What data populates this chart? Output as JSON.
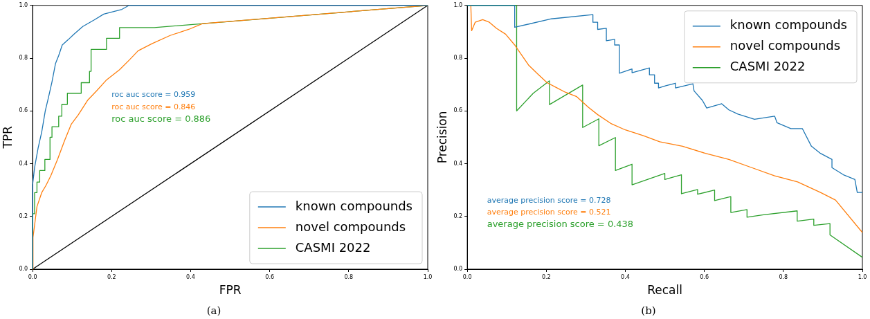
{
  "chart_data": [
    {
      "type": "line",
      "title": "(a)",
      "xlabel": "FPR",
      "ylabel": "TPR",
      "xlim": [
        0,
        1
      ],
      "ylim": [
        0,
        1
      ],
      "xticks": [
        {
          "value": 0,
          "label": "0.0"
        },
        {
          "value": 0.2,
          "label": "0.2"
        },
        {
          "value": 0.4,
          "label": "0.4"
        },
        {
          "value": 0.6,
          "label": "0.6"
        },
        {
          "value": 0.8,
          "label": "0.8"
        },
        {
          "value": 1,
          "label": "1.0"
        }
      ],
      "yticks": [
        {
          "value": 0,
          "label": "0.0"
        },
        {
          "value": 0.2,
          "label": "0.2"
        },
        {
          "value": 0.4,
          "label": "0.4"
        },
        {
          "value": 0.6,
          "label": "0.6"
        },
        {
          "value": 0.8,
          "label": "0.8"
        },
        {
          "value": 1,
          "label": "1.0"
        }
      ],
      "legend": "bottom right",
      "grid": false,
      "annotations": [
        "roc auc score = 0.959",
        "roc auc score = 0.846",
        "roc auc score = 0.886"
      ],
      "series": [
        {
          "name": "known compounds",
          "color": "#1f77b4",
          "x": [
            0,
            0,
            0.005,
            0.014,
            0.023,
            0.032,
            0.04,
            0.049,
            0.058,
            0.066,
            0.075,
            0.09,
            0.104,
            0.127,
            0.156,
            0.18,
            0.226,
            0.244,
            1
          ],
          "values": [
            0,
            0.32,
            0.385,
            0.46,
            0.52,
            0.6,
            0.65,
            0.71,
            0.78,
            0.81,
            0.85,
            0.87,
            0.89,
            0.92,
            0.945,
            0.967,
            0.985,
            1,
            1
          ]
        },
        {
          "name": "novel compounds",
          "color": "#ff7f0e",
          "x": [
            0,
            0.001,
            0.011,
            0.023,
            0.034,
            0.046,
            0.063,
            0.081,
            0.098,
            0.116,
            0.139,
            0.162,
            0.186,
            0.22,
            0.244,
            0.267,
            0.302,
            0.348,
            0.395,
            0.43,
            1
          ],
          "values": [
            0,
            0.12,
            0.237,
            0.29,
            0.318,
            0.354,
            0.416,
            0.488,
            0.55,
            0.586,
            0.64,
            0.676,
            0.716,
            0.756,
            0.792,
            0.828,
            0.855,
            0.886,
            0.909,
            0.931,
            1
          ]
        },
        {
          "name": "CASMI 2022",
          "color": "#2ca02c",
          "x": [
            0,
            0,
            0.005,
            0.005,
            0.011,
            0.011,
            0.018,
            0.018,
            0.031,
            0.031,
            0.044,
            0.044,
            0.049,
            0.049,
            0.066,
            0.066,
            0.074,
            0.074,
            0.088,
            0.088,
            0.123,
            0.123,
            0.144,
            0.144,
            0.148,
            0.148,
            0.187,
            0.187,
            0.22,
            0.22,
            0.308,
            1
          ],
          "values": [
            0,
            0.21,
            0.21,
            0.29,
            0.29,
            0.33,
            0.33,
            0.374,
            0.374,
            0.416,
            0.416,
            0.5,
            0.5,
            0.54,
            0.54,
            0.58,
            0.58,
            0.625,
            0.625,
            0.667,
            0.667,
            0.707,
            0.707,
            0.75,
            0.75,
            0.833,
            0.833,
            0.875,
            0.875,
            0.916,
            0.916,
            1
          ]
        },
        {
          "color": "#000000",
          "x": [
            0,
            1
          ],
          "values": [
            0,
            1
          ]
        }
      ]
    },
    {
      "type": "line",
      "title": "(b)",
      "xlabel": "Recall",
      "ylabel": "Precision",
      "xlim": [
        0,
        1
      ],
      "ylim": [
        0,
        1
      ],
      "xticks": [
        {
          "value": 0,
          "label": "0.0"
        },
        {
          "value": 0.2,
          "label": "0.2"
        },
        {
          "value": 0.4,
          "label": "0.4"
        },
        {
          "value": 0.6,
          "label": "0.6"
        },
        {
          "value": 0.8,
          "label": "0.8"
        },
        {
          "value": 1,
          "label": "1.0"
        }
      ],
      "yticks": [
        {
          "value": 0,
          "label": "0.0"
        },
        {
          "value": 0.2,
          "label": "0.2"
        },
        {
          "value": 0.4,
          "label": "0.4"
        },
        {
          "value": 0.6,
          "label": "0.6"
        },
        {
          "value": 0.8,
          "label": "0.8"
        },
        {
          "value": 1,
          "label": "1.0"
        }
      ],
      "legend": "top right",
      "grid": false,
      "annotations": [
        "average precision score = 0.728",
        "average precision score = 0.521",
        "average precision score = 0.438"
      ],
      "series": [
        {
          "name": "known compounds",
          "color": "#1f77b4",
          "x": [
            0,
            0.12,
            0.12,
            0.213,
            0.318,
            0.318,
            0.33,
            0.33,
            0.352,
            0.352,
            0.373,
            0.373,
            0.385,
            0.385,
            0.417,
            0.417,
            0.461,
            0.461,
            0.474,
            0.474,
            0.484,
            0.484,
            0.504,
            0.527,
            0.527,
            0.571,
            0.574,
            0.595,
            0.606,
            0.644,
            0.662,
            0.685,
            0.727,
            0.778,
            0.784,
            0.819,
            0.848,
            0.871,
            0.894,
            0.923,
            0.923,
            0.952,
            0.981,
            0.987,
            1
          ],
          "values": [
            1,
            1,
            0.917,
            0.949,
            0.965,
            0.936,
            0.936,
            0.909,
            0.913,
            0.866,
            0.871,
            0.85,
            0.85,
            0.743,
            0.759,
            0.745,
            0.763,
            0.737,
            0.737,
            0.705,
            0.705,
            0.687,
            0.696,
            0.705,
            0.687,
            0.703,
            0.676,
            0.64,
            0.611,
            0.627,
            0.604,
            0.588,
            0.568,
            0.58,
            0.555,
            0.533,
            0.533,
            0.466,
            0.439,
            0.416,
            0.385,
            0.358,
            0.34,
            0.291,
            0.291
          ]
        },
        {
          "name": "novel compounds",
          "color": "#ff7f0e",
          "x": [
            0.009,
            0.011,
            0.02,
            0.039,
            0.056,
            0.074,
            0.097,
            0.12,
            0.132,
            0.155,
            0.179,
            0.202,
            0.225,
            0.248,
            0.277,
            0.307,
            0.33,
            0.365,
            0.4,
            0.446,
            0.487,
            0.545,
            0.603,
            0.662,
            0.72,
            0.778,
            0.836,
            0.894,
            0.932,
            1
          ],
          "values": [
            1,
            0.904,
            0.936,
            0.946,
            0.936,
            0.913,
            0.891,
            0.85,
            0.824,
            0.774,
            0.739,
            0.707,
            0.689,
            0.671,
            0.654,
            0.613,
            0.586,
            0.551,
            0.528,
            0.506,
            0.483,
            0.466,
            0.439,
            0.416,
            0.385,
            0.354,
            0.331,
            0.291,
            0.262,
            0.139
          ]
        },
        {
          "name": "CASMI 2022",
          "color": "#2ca02c",
          "x": [
            0,
            0.125,
            0.125,
            0.167,
            0.208,
            0.208,
            0.292,
            0.292,
            0.333,
            0.333,
            0.375,
            0.375,
            0.417,
            0.417,
            0.5,
            0.5,
            0.542,
            0.542,
            0.583,
            0.583,
            0.626,
            0.626,
            0.667,
            0.667,
            0.708,
            0.708,
            0.75,
            0.835,
            0.835,
            0.877,
            0.877,
            0.918,
            0.918,
            1
          ],
          "values": [
            1,
            1,
            0.6,
            0.667,
            0.714,
            0.624,
            0.698,
            0.537,
            0.57,
            0.468,
            0.499,
            0.374,
            0.398,
            0.32,
            0.363,
            0.34,
            0.358,
            0.286,
            0.302,
            0.284,
            0.3,
            0.26,
            0.275,
            0.215,
            0.226,
            0.197,
            0.206,
            0.221,
            0.182,
            0.19,
            0.166,
            0.173,
            0.13,
            0.045
          ]
        }
      ]
    }
  ]
}
